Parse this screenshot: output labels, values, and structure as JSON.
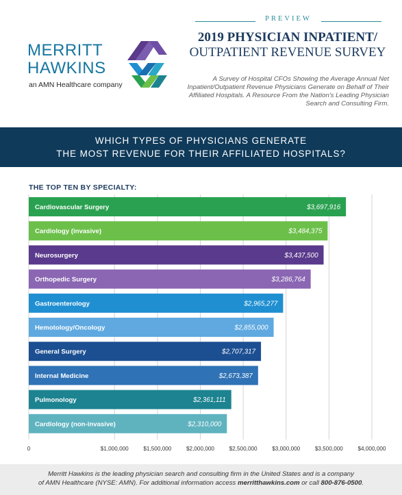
{
  "header": {
    "logo_line1": "MERRITT",
    "logo_line2": "HAWKINS",
    "logo_sub": "an AMN Healthcare company",
    "preview": "PREVIEW",
    "title_l1": "2019 PHYSICIAN INPATIENT/",
    "title_l2": "OUTPATIENT REVENUE SURVEY",
    "subtitle": "A Survey of Hospital CFOs Showing the Average Annual Net Inpatient/Outpatient Revenue Physicians Generate on Behalf of Their Affiliated Hospitals. A Resource From the Nation's Leading Physician Search and Consulting Firm."
  },
  "banner": {
    "line1": "WHICH TYPES OF PHYSICIANS GENERATE",
    "line2": "THE MOST REVENUE FOR THEIR AFFILIATED HOSPITALS?"
  },
  "section_label": "THE TOP TEN BY SPECIALTY:",
  "footer": {
    "text1": "Merritt Hawkins is the leading physician search and consulting firm in the United States and is a company",
    "text2a": "of AMN Healthcare (NYSE: AMN). For additional information access ",
    "link": "merritthawkins.com",
    "text2b": " or call ",
    "phone": "800-876-0500",
    "text2c": "."
  },
  "colors": {
    "navy": "#0f3a5a",
    "bar_colors": [
      "#2aa150",
      "#6cc04a",
      "#5a3a8c",
      "#8a66b3",
      "#1f8fd1",
      "#5fa9e0",
      "#1c4f92",
      "#2f72b6",
      "#1d8390",
      "#5fb3bf"
    ]
  },
  "chart_data": {
    "type": "bar",
    "orientation": "horizontal",
    "categories": [
      "Cardiovascular Surgery",
      "Cardiology (invasive)",
      "Neurosurgery",
      "Orthopedic Surgery",
      "Gastroenterology",
      "Hemotology/Oncology",
      "General Surgery",
      "Internal Medicine",
      "Pulmonology",
      "Cardiology (non-invasive)"
    ],
    "values": [
      3697916,
      3484375,
      3437500,
      3286764,
      2965277,
      2855000,
      2707317,
      2673387,
      2361111,
      2310000
    ],
    "value_labels": [
      "$3,697,916",
      "$3,484,375",
      "$3,437,500",
      "$3,286,764",
      "$2,965,277",
      "$2,855,000",
      "$2,707,317",
      "$2,673,387",
      "$2,361,111",
      "$2,310,000"
    ],
    "xlim": [
      0,
      4000000
    ],
    "x_ticks": [
      0,
      1000000,
      1500000,
      2000000,
      2500000,
      3000000,
      3500000,
      4000000
    ],
    "x_tick_labels": [
      "0",
      "$1,000,000",
      "$1,500,000",
      "$2,000,000",
      "$2,500,000",
      "$3,000,000",
      "$3,500,000",
      "$4,000,000"
    ],
    "grid": true
  }
}
